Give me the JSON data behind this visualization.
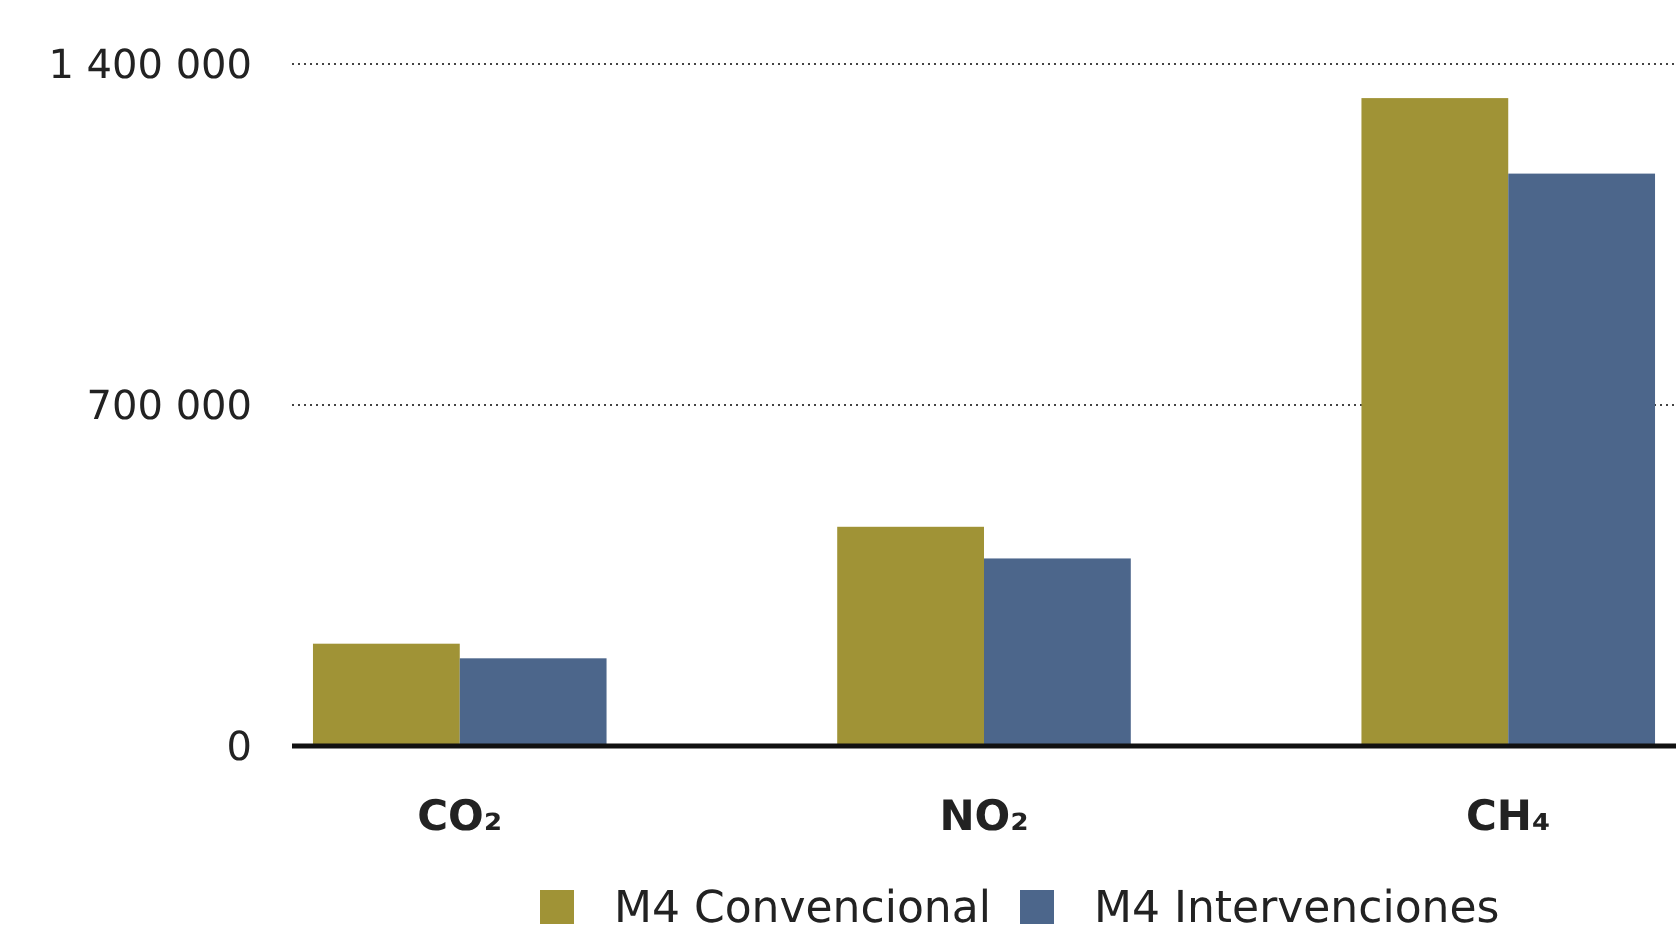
{
  "chart_data": {
    "type": "bar",
    "categories": [
      "CO₂",
      "NO₂",
      "CH₄"
    ],
    "series": [
      {
        "name": "M4 Convencional",
        "color": "#a09336",
        "values": [
          210000,
          450000,
          1330000
        ]
      },
      {
        "name": "M4 Intervenciones",
        "color": "#4c668b",
        "values": [
          180000,
          385000,
          1175000
        ]
      }
    ],
    "ylim": [
      0,
      1400000
    ],
    "yticks": [
      0,
      {
        "value": 700000,
        "label": "700 000"
      },
      {
        "value": 1400000,
        "label": "1 400 000"
      }
    ],
    "grid": "y",
    "legend": "bottom"
  }
}
